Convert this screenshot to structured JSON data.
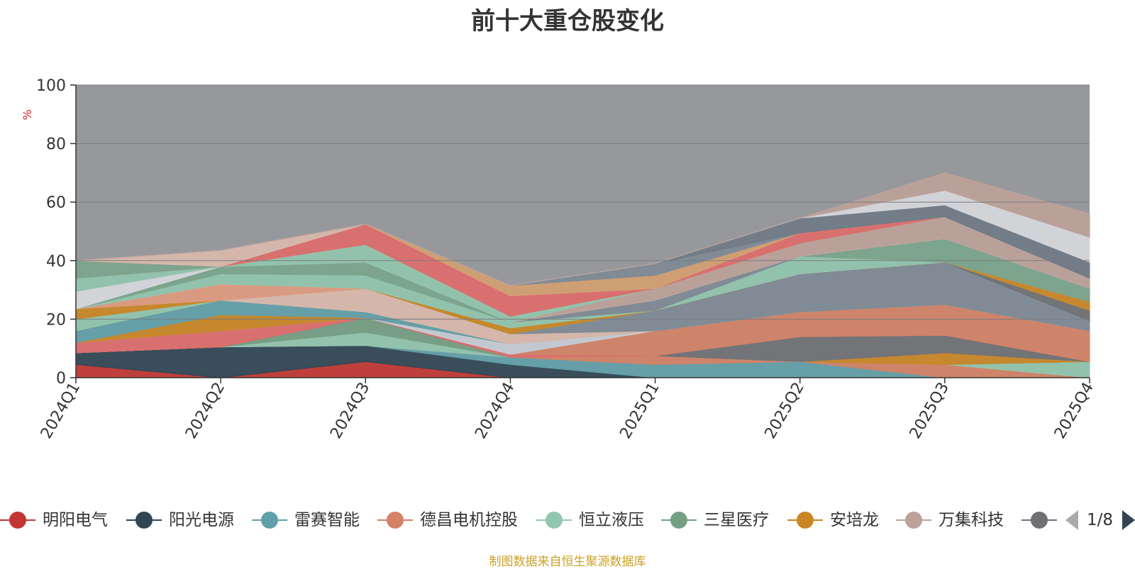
{
  "title": "前十大重仓股变化",
  "footnote": "制图数据来自恒生聚源数据库",
  "legend_page": "1/8",
  "chart_data": {
    "type": "area",
    "title": "前十大重仓股变化",
    "ylabel": "%",
    "ylim": [
      0,
      100
    ],
    "yticks": [
      0,
      20,
      40,
      60,
      80,
      100
    ],
    "grid": true,
    "legend_position": "bottom",
    "categories": [
      "2024Q1",
      "2024Q2",
      "2024Q3",
      "2024Q4",
      "2025Q1",
      "2025Q2",
      "2025Q3",
      "2025Q4"
    ],
    "background_color": "#97989c",
    "series": [
      {
        "name": "明阳电气",
        "color": "#c23531",
        "values": [
          4.5,
          0,
          5.5,
          0,
          0,
          0,
          0,
          0
        ]
      },
      {
        "name": "阳光电源",
        "color": "#2f4554",
        "values": [
          4,
          10.5,
          5.5,
          4.5,
          0,
          0,
          0,
          0
        ]
      },
      {
        "name": "雷赛智能",
        "color": "#61a0a8",
        "values": [
          0,
          0,
          0,
          2.5,
          4.5,
          5.5,
          0,
          0
        ]
      },
      {
        "name": "德昌电机控股",
        "color": "#d48265",
        "values": [
          0,
          0,
          0,
          0,
          3,
          0,
          4.5,
          0
        ]
      },
      {
        "name": "恒立液压",
        "color": "#91c7ae",
        "values": [
          0,
          0,
          4.5,
          0,
          0,
          0,
          0,
          5.5
        ]
      },
      {
        "name": "三星医疗",
        "color": "#749f83",
        "values": [
          0,
          0,
          5,
          0,
          0,
          0,
          0,
          0
        ]
      },
      {
        "name": "安培龙",
        "color": "#ca8622",
        "values": [
          0,
          0,
          0,
          0,
          0,
          0,
          4,
          0
        ]
      },
      {
        "name": "万集科技",
        "color": "#bda29a",
        "values": [
          0,
          0,
          0,
          0,
          0,
          0,
          0,
          0
        ]
      },
      {
        "name": "",
        "color": "#6e7074",
        "values": [
          0,
          0,
          0,
          0,
          0,
          8.5,
          6,
          0
        ]
      },
      {
        "name": "",
        "color": "#e06b6b",
        "values": [
          3.5,
          5.5,
          0,
          1,
          0,
          0,
          0,
          0
        ]
      },
      {
        "name": "",
        "color": "#d48265",
        "values": [
          0,
          0,
          0,
          0,
          8.5,
          8.5,
          10.5,
          10.5
        ]
      },
      {
        "name": "",
        "color": "#c8cdd6",
        "values": [
          0,
          0,
          0,
          3.5,
          0,
          0,
          0,
          0
        ]
      },
      {
        "name": "",
        "color": "#ca8622",
        "values": [
          0,
          5.5,
          0,
          0,
          0,
          0,
          0,
          0
        ]
      },
      {
        "name": "",
        "color": "#61a0a8",
        "values": [
          4,
          5,
          2,
          0,
          0,
          0,
          0,
          0
        ]
      },
      {
        "name": "",
        "color": "#dbb9ad",
        "values": [
          0,
          0,
          8,
          3.5,
          0,
          0,
          0,
          0
        ]
      },
      {
        "name": "",
        "color": "#7e8a95",
        "values": [
          0,
          0,
          0,
          0,
          7,
          13,
          14.5,
          3.5
        ]
      },
      {
        "name": "",
        "color": "#6e7074",
        "values": [
          0,
          0,
          0,
          0,
          0,
          0,
          0,
          3.5
        ]
      },
      {
        "name": "",
        "color": "#91c7ae",
        "values": [
          4,
          0,
          0,
          0,
          0,
          0,
          0,
          0
        ]
      },
      {
        "name": "",
        "color": "#ca8622",
        "values": [
          3.5,
          0,
          0,
          2,
          0,
          0,
          0,
          3
        ]
      },
      {
        "name": "",
        "color": "#e09a80",
        "values": [
          0,
          5.5,
          0,
          0,
          0,
          0,
          0,
          0
        ]
      },
      {
        "name": "",
        "color": "#91c7ae",
        "values": [
          0,
          3.5,
          4.5,
          2,
          0,
          6,
          0,
          0
        ]
      },
      {
        "name": "",
        "color": "#7aa58b",
        "values": [
          0,
          2.5,
          4.5,
          0,
          0,
          0,
          8,
          4.5
        ]
      },
      {
        "name": "",
        "color": "#7e8a95",
        "values": [
          0,
          0,
          0,
          0,
          3.5,
          0,
          0,
          0
        ]
      },
      {
        "name": "",
        "color": "#d7d9de",
        "values": [
          6,
          0,
          0,
          0,
          0,
          0,
          0,
          0
        ]
      },
      {
        "name": "",
        "color": "#bda29a",
        "values": [
          0,
          0,
          0,
          0,
          4,
          4.5,
          7.5,
          3.5
        ]
      },
      {
        "name": "",
        "color": "#91c7ae",
        "values": [
          4.5,
          0,
          6,
          2,
          0,
          0,
          0,
          0
        ]
      },
      {
        "name": "",
        "color": "#e06b6b",
        "values": [
          0,
          0,
          7,
          7,
          0,
          3.5,
          0,
          0
        ]
      },
      {
        "name": "",
        "color": "#7aa58b",
        "values": [
          6,
          0,
          0,
          0,
          0,
          0,
          0,
          0
        ]
      },
      {
        "name": "",
        "color": "#dbb9ad",
        "values": [
          0,
          5.5,
          0,
          0,
          0,
          0,
          0,
          0
        ]
      },
      {
        "name": "",
        "color": "#d4a070",
        "values": [
          0,
          0,
          0,
          3.5,
          4.5,
          0,
          0,
          0
        ]
      },
      {
        "name": "",
        "color": "#7e8a95",
        "values": [
          0,
          0,
          0,
          0,
          4,
          0,
          0,
          0
        ]
      },
      {
        "name": "",
        "color": "#6e7a86",
        "values": [
          0,
          0,
          0,
          0,
          0,
          5,
          4,
          5.5
        ]
      },
      {
        "name": "",
        "color": "#d7d9de",
        "values": [
          0,
          0,
          0,
          0,
          0,
          0,
          5,
          8.5
        ]
      },
      {
        "name": "",
        "color": "#bda29a",
        "values": [
          0,
          0,
          0,
          0,
          0,
          0,
          6,
          8
        ]
      }
    ]
  }
}
